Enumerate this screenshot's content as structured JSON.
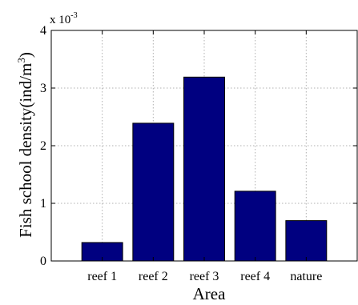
{
  "chart_data": {
    "type": "bar",
    "categories": [
      "reef 1",
      "reef 2",
      "reef 3",
      "reef 4",
      "nature"
    ],
    "values": [
      0.00032,
      0.00239,
      0.00319,
      0.00121,
      0.0007
    ],
    "xlabel": "Area",
    "ylabel": "Fish school density(ind/m3)",
    "ylabel_parts": {
      "main": "Fish school density(ind/m",
      "sup": "3",
      "tail": ")"
    },
    "y_multiplier_label": {
      "base": "x 10",
      "exp": "-3"
    },
    "ylim": [
      0,
      0.004
    ],
    "yticks": [
      0,
      0.001,
      0.002,
      0.003,
      0.004
    ],
    "ytick_labels": [
      "0",
      "1",
      "2",
      "3",
      "4"
    ],
    "grid": true,
    "bar_color": "#000080"
  }
}
